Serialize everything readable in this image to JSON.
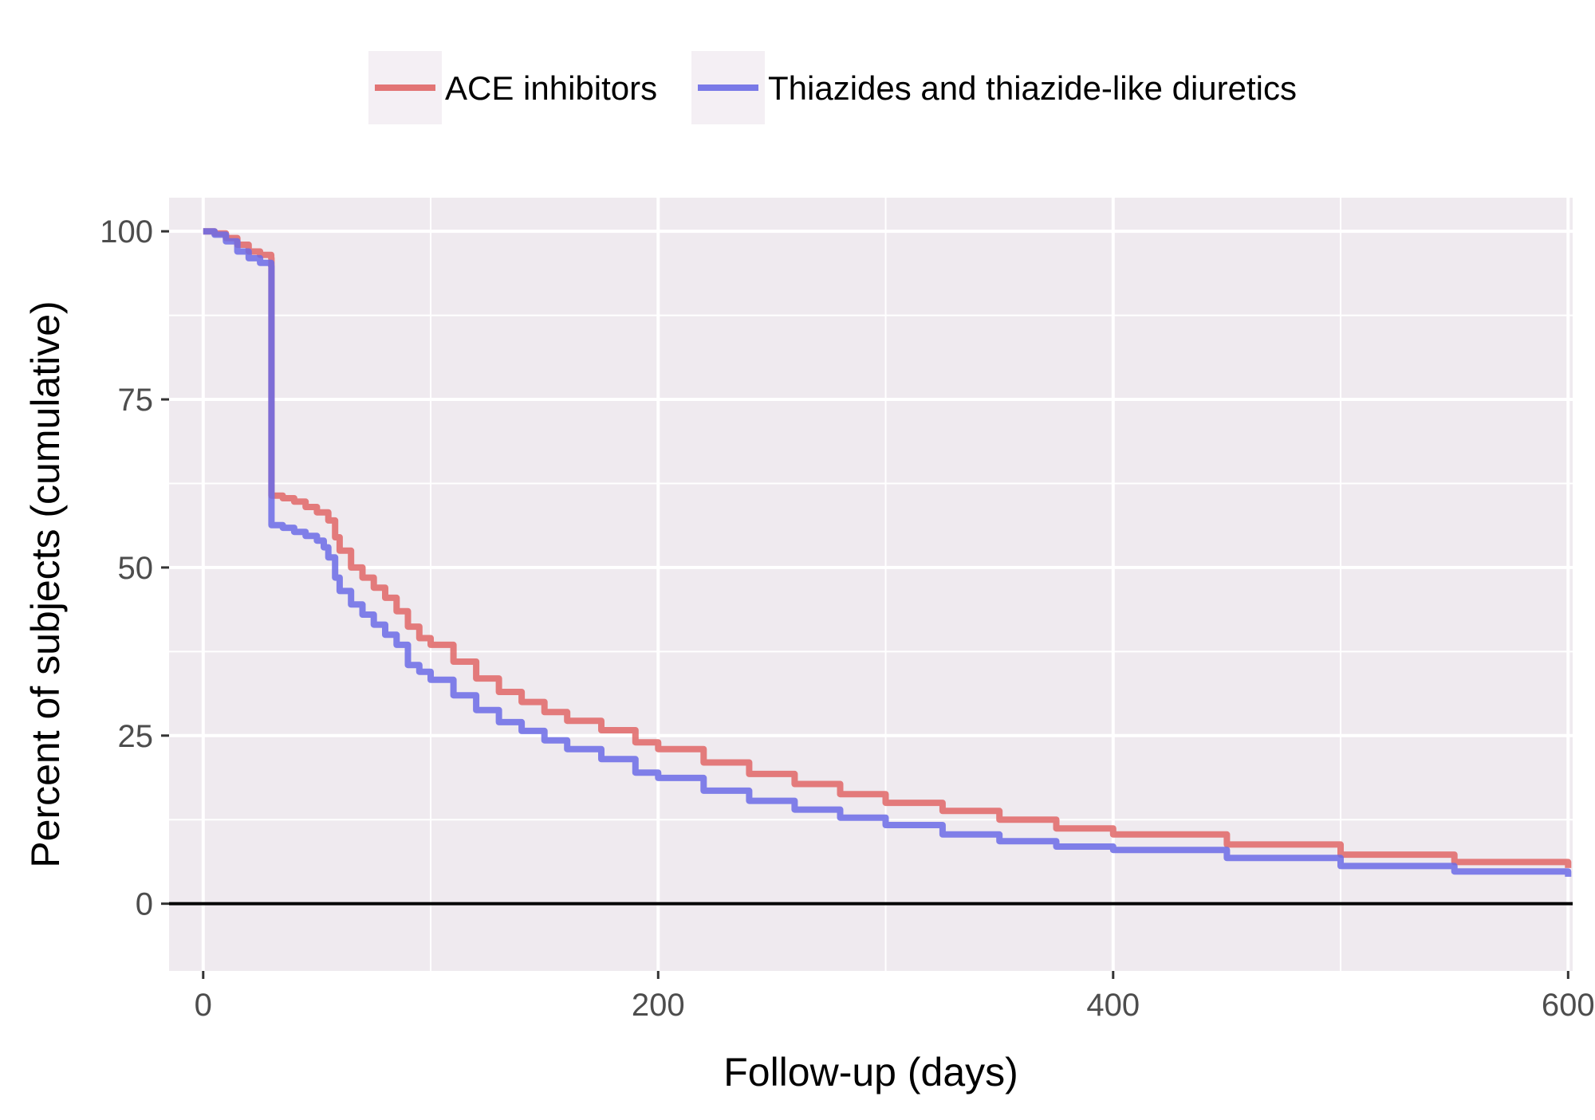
{
  "chart_data": {
    "type": "line",
    "step": true,
    "title": "",
    "xlabel": "Follow-up (days)",
    "ylabel": "Percent of subjects (cumulative)",
    "xlim": [
      -15,
      602
    ],
    "ylim": [
      -10,
      105
    ],
    "x_ticks": [
      0,
      200,
      400,
      600
    ],
    "y_ticks": [
      0,
      25,
      50,
      75,
      100
    ],
    "x_tick_labels": [
      "0",
      "200",
      "400",
      "600"
    ],
    "y_tick_labels": [
      "0",
      "25",
      "50",
      "75",
      "100"
    ],
    "grid": true,
    "reference_line_y": 0,
    "legend_position": "top",
    "colors": {
      "panel_background": "#EFEAEF",
      "grid": "#FFFFFF",
      "reference_line": "#000000"
    },
    "series": [
      {
        "name": "ACE inhibitors",
        "color": "#E06666",
        "x": [
          0,
          5,
          10,
          15,
          20,
          25,
          29.9,
          30,
          35,
          40,
          45,
          50,
          55,
          58,
          60,
          65,
          70,
          75,
          80,
          85,
          90,
          95,
          100,
          110,
          120,
          130,
          140,
          150,
          160,
          175,
          190,
          200,
          220,
          240,
          260,
          280,
          300,
          325,
          350,
          375,
          400,
          450,
          500,
          550,
          600
        ],
        "values": [
          100,
          99.7,
          99,
          98,
          97,
          96.5,
          96,
          60.7,
          60.3,
          59.8,
          59,
          58.2,
          57,
          54.5,
          52.5,
          50,
          48.5,
          47,
          45.5,
          43.5,
          41.2,
          39.5,
          38.5,
          36,
          33.5,
          31.5,
          30,
          28.5,
          27.2,
          25.8,
          24,
          23,
          21,
          19.3,
          17.8,
          16.3,
          15,
          13.8,
          12.5,
          11.2,
          10.3,
          8.8,
          7.3,
          6.2,
          5.3
        ]
      },
      {
        "name": "Thiazides and thiazide-like diuretics",
        "color": "#6B6BE6",
        "x": [
          0,
          5,
          10,
          15,
          20,
          25,
          29.9,
          30,
          35,
          40,
          45,
          50,
          53,
          55,
          58,
          60,
          65,
          70,
          75,
          80,
          85,
          90,
          95,
          100,
          110,
          120,
          130,
          140,
          150,
          160,
          175,
          190,
          200,
          220,
          240,
          260,
          280,
          300,
          325,
          350,
          375,
          400,
          450,
          500,
          550,
          600
        ],
        "values": [
          100,
          99.5,
          98.5,
          97,
          96,
          95.3,
          94.8,
          56.3,
          55.9,
          55.3,
          54.7,
          54,
          53,
          51.5,
          48.5,
          46.5,
          44.5,
          43,
          41.5,
          40,
          38.5,
          35.5,
          34.5,
          33.3,
          31,
          28.8,
          27,
          25.7,
          24.3,
          23,
          21.5,
          19.5,
          18.7,
          16.8,
          15.3,
          14,
          12.8,
          11.7,
          10.3,
          9.3,
          8.5,
          8,
          6.8,
          5.6,
          4.8,
          4
        ]
      }
    ]
  }
}
